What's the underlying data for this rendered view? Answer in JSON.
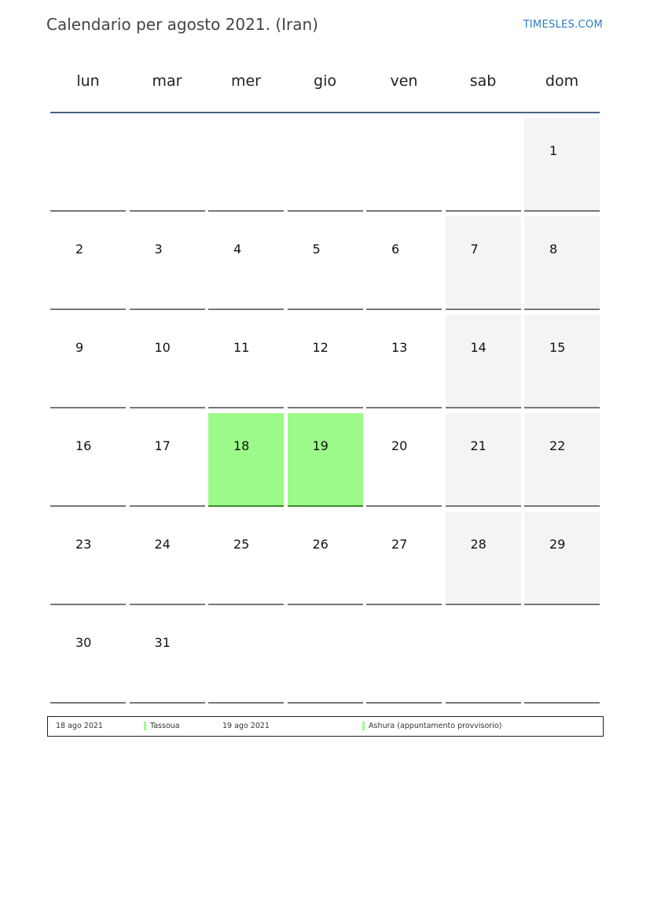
{
  "header": {
    "title": "Calendario per agosto 2021. (Iran)",
    "brand": "TIMESLES.COM"
  },
  "weekdays": [
    "lun",
    "mar",
    "mer",
    "gio",
    "ven",
    "sab",
    "dom"
  ],
  "colors": {
    "weekend": "#f4f4f4",
    "holiday": "#9cfa88",
    "header_line": "#4a6288"
  },
  "weeks": [
    [
      null,
      null,
      null,
      null,
      null,
      null,
      "1"
    ],
    [
      "2",
      "3",
      "4",
      "5",
      "6",
      "7",
      "8"
    ],
    [
      "9",
      "10",
      "11",
      "12",
      "13",
      "14",
      "15"
    ],
    [
      "16",
      "17",
      "18",
      "19",
      "20",
      "21",
      "22"
    ],
    [
      "23",
      "24",
      "25",
      "26",
      "27",
      "28",
      "29"
    ],
    [
      "30",
      "31",
      null,
      null,
      null,
      null,
      null
    ]
  ],
  "holidays": [
    "18",
    "19"
  ],
  "legend": [
    {
      "date": "18 ago 2021",
      "name": "Tassoua"
    },
    {
      "date": "19 ago 2021",
      "name": "Ashura (appuntamento provvisorio)"
    }
  ]
}
